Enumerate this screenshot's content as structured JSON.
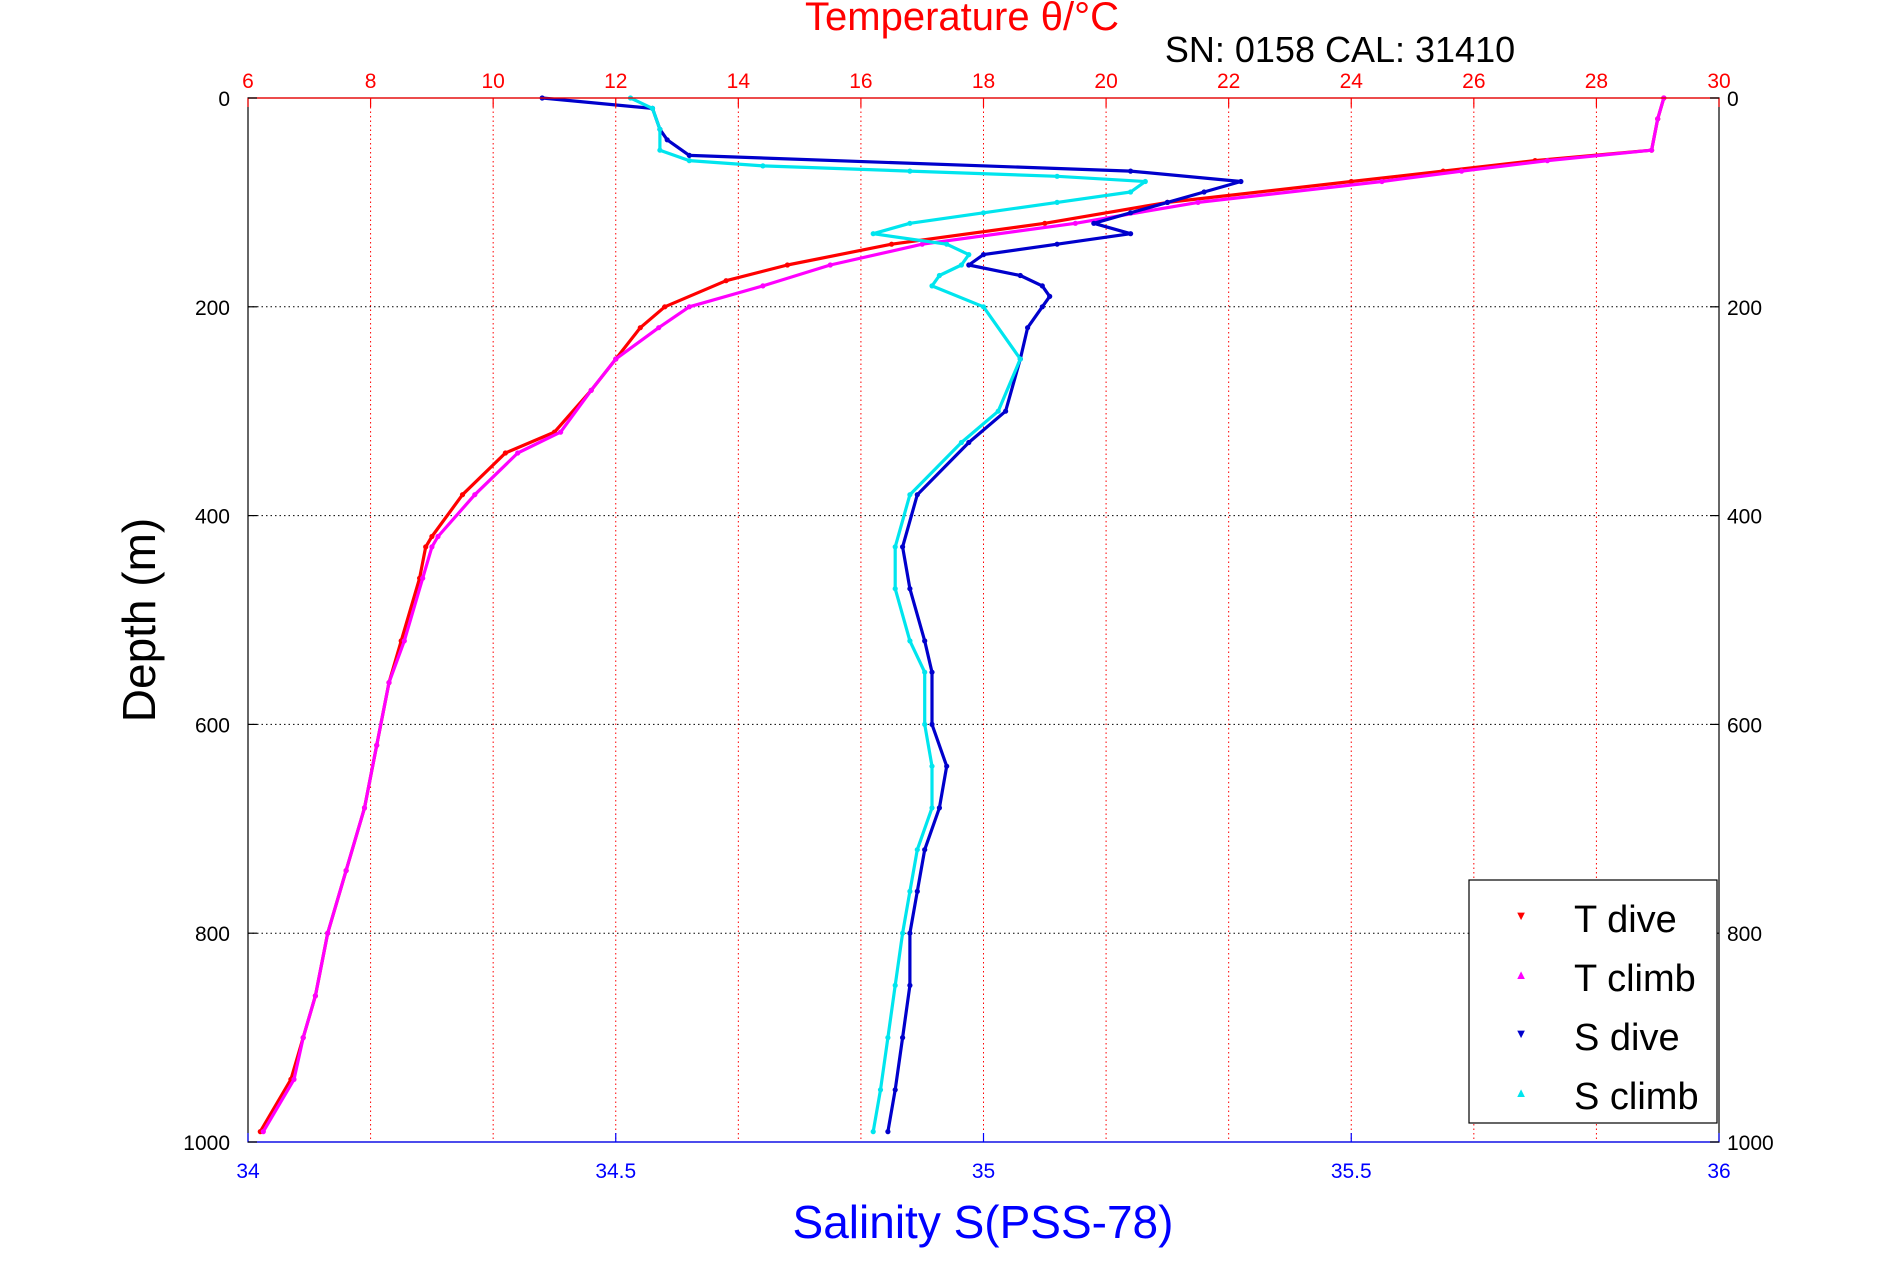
{
  "chart_data": {
    "type": "scatter",
    "title": "Temperature θ/°C",
    "subtitle": "SN: 0158  CAL: 31410",
    "xlabel": "Salinity S(PSS-78)",
    "ylabel": "Depth (m)",
    "top_axis_label": "Temperature θ/°C",
    "temperature_axis": {
      "lim": [
        6,
        30
      ],
      "ticks": [
        6,
        8,
        10,
        12,
        14,
        16,
        18,
        20,
        22,
        24,
        26,
        28,
        30
      ]
    },
    "salinity_axis": {
      "lim": [
        34,
        36
      ],
      "ticks": [
        "34",
        "34.5",
        "35",
        "35.5",
        "36"
      ],
      "tick_values": [
        34,
        34.5,
        35,
        35.5,
        36
      ]
    },
    "depth_axis": {
      "lim": [
        0,
        1000
      ],
      "reversed": true,
      "ticks": [
        0,
        200,
        400,
        600,
        800,
        1000
      ]
    },
    "grid": true,
    "legend_position": "bottom-right",
    "colors": {
      "t_dive": "#ff0000",
      "t_climb": "#ff00ff",
      "s_dive": "#0000cc",
      "s_climb": "#00e5ee",
      "temp_axis": "#ff0000",
      "sal_axis": "#0000ff"
    },
    "series": [
      {
        "name": "T dive",
        "variable": "temperature",
        "depth": [
          0,
          20,
          50,
          60,
          70,
          80,
          100,
          120,
          140,
          160,
          175,
          200,
          220,
          250,
          280,
          320,
          340,
          380,
          420,
          430,
          460,
          520,
          560,
          620,
          680,
          740,
          800,
          860,
          900,
          940,
          990
        ],
        "values": [
          29.1,
          29.0,
          28.9,
          27.0,
          25.5,
          24.0,
          21.0,
          19.0,
          16.5,
          14.8,
          13.8,
          12.8,
          12.4,
          12.0,
          11.6,
          11.0,
          10.2,
          9.5,
          9.0,
          8.9,
          8.8,
          8.5,
          8.3,
          8.1,
          7.9,
          7.6,
          7.3,
          7.1,
          6.9,
          6.7,
          6.2
        ]
      },
      {
        "name": "T climb",
        "variable": "temperature",
        "depth": [
          0,
          20,
          50,
          60,
          70,
          80,
          100,
          120,
          140,
          160,
          180,
          200,
          220,
          250,
          280,
          320,
          340,
          380,
          420,
          430,
          460,
          520,
          560,
          620,
          680,
          740,
          800,
          860,
          900,
          940,
          990
        ],
        "values": [
          29.1,
          29.0,
          28.9,
          27.2,
          25.8,
          24.5,
          21.5,
          19.5,
          17.0,
          15.5,
          14.4,
          13.2,
          12.7,
          12.0,
          11.6,
          11.1,
          10.4,
          9.7,
          9.1,
          9.0,
          8.85,
          8.55,
          8.3,
          8.1,
          7.9,
          7.6,
          7.3,
          7.1,
          6.9,
          6.75,
          6.25
        ]
      },
      {
        "name": "S dive",
        "variable": "salinity",
        "depth": [
          0,
          10,
          30,
          40,
          55,
          70,
          80,
          90,
          100,
          110,
          120,
          130,
          140,
          150,
          160,
          170,
          180,
          190,
          200,
          220,
          250,
          300,
          330,
          380,
          430,
          470,
          520,
          550,
          600,
          640,
          680,
          720,
          760,
          800,
          850,
          900,
          950,
          990
        ],
        "values": [
          34.4,
          34.55,
          34.56,
          34.57,
          34.6,
          35.2,
          35.35,
          35.3,
          35.25,
          35.2,
          35.15,
          35.2,
          35.1,
          35.0,
          34.98,
          35.05,
          35.08,
          35.09,
          35.08,
          35.06,
          35.05,
          35.03,
          34.98,
          34.91,
          34.89,
          34.9,
          34.92,
          34.93,
          34.93,
          34.95,
          34.94,
          34.92,
          34.91,
          34.9,
          34.9,
          34.89,
          34.88,
          34.87
        ]
      },
      {
        "name": "S climb",
        "variable": "salinity",
        "depth": [
          0,
          10,
          30,
          50,
          60,
          65,
          70,
          75,
          80,
          90,
          100,
          110,
          120,
          130,
          140,
          150,
          160,
          170,
          180,
          200,
          250,
          300,
          330,
          380,
          430,
          470,
          520,
          550,
          600,
          640,
          680,
          720,
          760,
          800,
          850,
          900,
          950,
          990
        ],
        "values": [
          34.52,
          34.55,
          34.56,
          34.56,
          34.6,
          34.7,
          34.9,
          35.1,
          35.22,
          35.2,
          35.1,
          35.0,
          34.9,
          34.85,
          34.95,
          34.98,
          34.97,
          34.94,
          34.93,
          35.0,
          35.05,
          35.02,
          34.97,
          34.9,
          34.88,
          34.88,
          34.9,
          34.92,
          34.92,
          34.93,
          34.93,
          34.91,
          34.9,
          34.89,
          34.88,
          34.87,
          34.86,
          34.85
        ]
      }
    ]
  }
}
